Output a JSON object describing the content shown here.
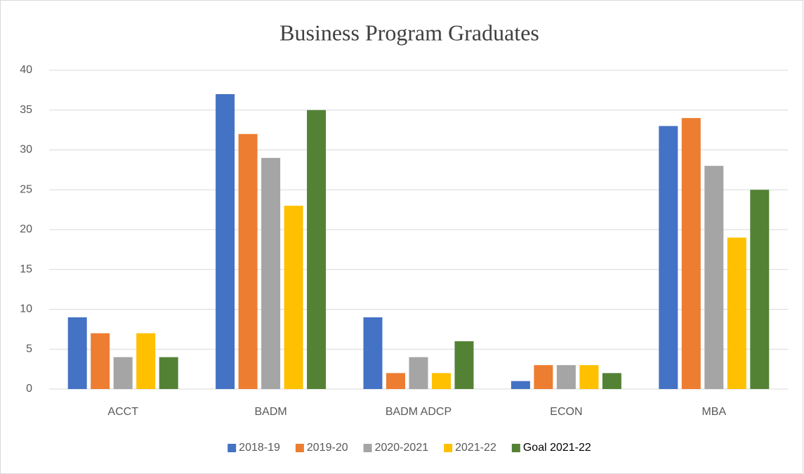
{
  "chart_data": {
    "type": "bar",
    "title": "Business Program Graduates",
    "categories": [
      "ACCT",
      "BADM",
      "BADM ADCP",
      "ECON",
      "MBA"
    ],
    "series": [
      {
        "name": "2018-19",
        "color": "#4472c4",
        "values": [
          9,
          37,
          9,
          1,
          33
        ]
      },
      {
        "name": "2019-20",
        "color": "#ed7d31",
        "values": [
          7,
          32,
          2,
          3,
          34
        ]
      },
      {
        "name": "2020-2021",
        "color": "#a5a5a5",
        "values": [
          4,
          29,
          4,
          3,
          28
        ]
      },
      {
        "name": "2021-22",
        "color": "#ffc000",
        "values": [
          7,
          23,
          2,
          3,
          19
        ]
      },
      {
        "name": "Goal 2021-22",
        "color": "#548235",
        "values": [
          4,
          35,
          6,
          2,
          25
        ]
      }
    ],
    "ylim": [
      0,
      40
    ],
    "yticks": [
      0,
      5,
      10,
      15,
      20,
      25,
      30,
      35,
      40
    ],
    "grid": true,
    "legend": "bottom"
  }
}
